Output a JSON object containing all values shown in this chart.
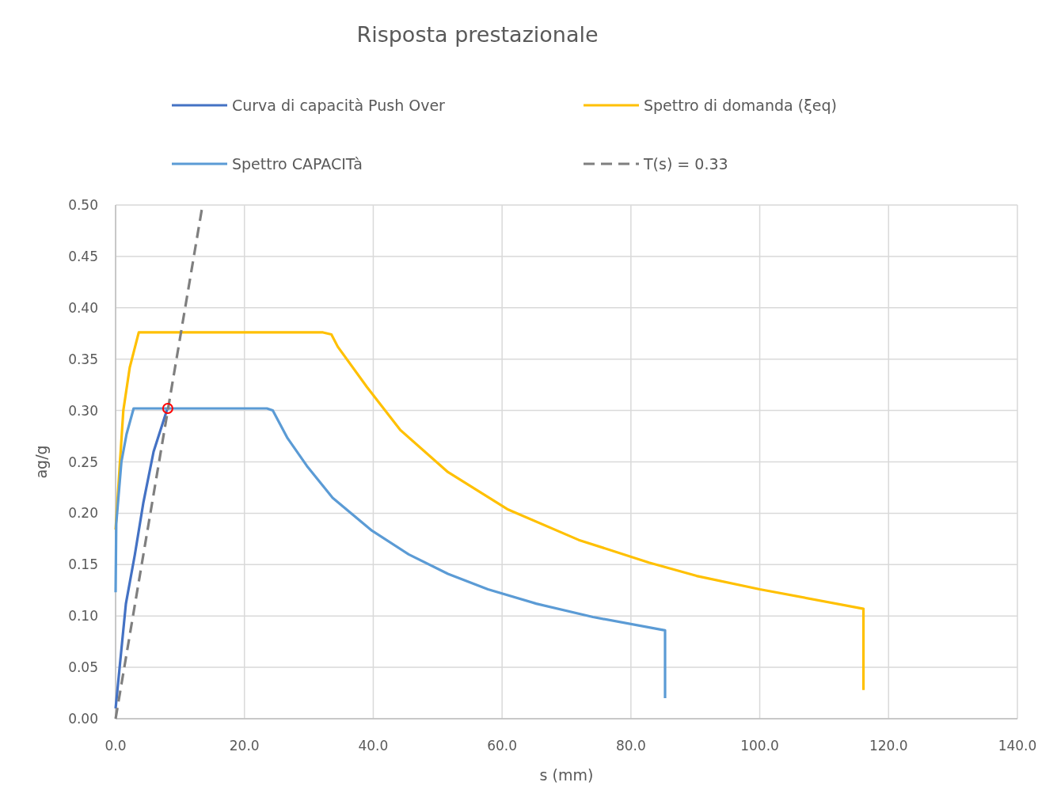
{
  "chart_data": {
    "type": "line",
    "title": "Risposta prestazionale",
    "xlabel": "s (mm)",
    "ylabel": "ag/g",
    "xlim": [
      0,
      140
    ],
    "ylim": [
      0,
      0.5
    ],
    "xticks": [
      {
        "value": 0,
        "label": "0.0"
      },
      {
        "value": 20,
        "label": "20.0"
      },
      {
        "value": 40,
        "label": "40.0"
      },
      {
        "value": 60,
        "label": "60.0"
      },
      {
        "value": 80,
        "label": "80.0"
      },
      {
        "value": 100,
        "label": "100.0"
      },
      {
        "value": 120,
        "label": "120.0"
      },
      {
        "value": 140,
        "label": "140.0"
      }
    ],
    "yticks": [
      {
        "value": 0,
        "label": "0.00"
      },
      {
        "value": 0.05,
        "label": "0.05"
      },
      {
        "value": 0.1,
        "label": "0.10"
      },
      {
        "value": 0.15,
        "label": "0.15"
      },
      {
        "value": 0.2,
        "label": "0.20"
      },
      {
        "value": 0.25,
        "label": "0.25"
      },
      {
        "value": 0.3,
        "label": "0.30"
      },
      {
        "value": 0.35,
        "label": "0.35"
      },
      {
        "value": 0.4,
        "label": "0.40"
      },
      {
        "value": 0.45,
        "label": "0.45"
      },
      {
        "value": 0.5,
        "label": "0.50"
      }
    ],
    "grid": true,
    "legend": "top",
    "series": [
      {
        "name": "Curva di capacità Push Over",
        "color": "#4472c4",
        "x": [
          0,
          1.6,
          3,
          4.3,
          5.9,
          8
        ],
        "values": [
          0.01,
          0.112,
          0.16,
          0.21,
          0.26,
          0.301
        ]
      },
      {
        "name": "Spettro di domanda (ξeq)",
        "color": "#ffc000",
        "x": [
          0,
          1.2,
          2.2,
          3.6,
          32.2,
          33.5,
          34.5,
          39,
          44.2,
          51.6,
          60.8,
          71.9,
          82.8,
          90.2,
          100,
          116.1,
          116.1
        ],
        "values": [
          0.184,
          0.3,
          0.342,
          0.376,
          0.376,
          0.374,
          0.362,
          0.323,
          0.281,
          0.24,
          0.204,
          0.174,
          0.152,
          0.139,
          0.126,
          0.107,
          0.028
        ]
      },
      {
        "name": "Spettro CAPACITà",
        "color": "#5b9bd5",
        "x": [
          0,
          0.1,
          0.9,
          1.7,
          2.8,
          23.5,
          24.4,
          26.7,
          29.7,
          33.7,
          39.8,
          45.5,
          51.6,
          57.8,
          65.3,
          74.1,
          85.3,
          85.3
        ],
        "values": [
          0.123,
          0.19,
          0.25,
          0.277,
          0.302,
          0.302,
          0.3,
          0.273,
          0.246,
          0.215,
          0.183,
          0.16,
          0.141,
          0.126,
          0.112,
          0.099,
          0.086,
          0.02
        ]
      },
      {
        "name": "T(s) = 0.33",
        "color": "#7f7f7f",
        "line_style": "dashed",
        "x": [
          0,
          13.5
        ],
        "values": [
          0,
          0.5
        ]
      },
      {
        "type": "scatter",
        "marker": "circle",
        "color": "#ff0000",
        "x": [
          8.1
        ],
        "values": [
          0.302
        ]
      }
    ]
  }
}
